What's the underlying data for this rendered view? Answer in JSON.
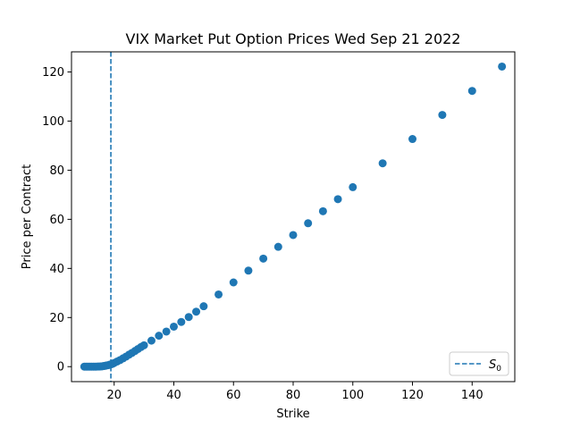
{
  "chart_data": {
    "type": "scatter",
    "title": "VIX Market Put Option Prices Wed Sep 21 2022",
    "xlabel": "Strike",
    "ylabel": "Price per Contract",
    "xlim": [
      5.7,
      154.3
    ],
    "ylim": [
      -6.1,
      128.2
    ],
    "xticks": [
      20,
      40,
      60,
      80,
      100,
      120,
      140
    ],
    "yticks": [
      0,
      20,
      40,
      60,
      80,
      100,
      120
    ],
    "grid": false,
    "legend": {
      "placement": "lower-right",
      "entries": [
        {
          "label": "S",
          "subscript": "0",
          "style": "dashed-line",
          "color": "#1f77b4"
        }
      ]
    },
    "reference_line": {
      "orientation": "vertical",
      "x": 18.9,
      "color": "#1f77b4",
      "style": "dashed"
    },
    "series": [
      {
        "color": "#1f77b4",
        "x": [
          10,
          10.5,
          11,
          11.5,
          12,
          12.5,
          13,
          13.5,
          14,
          14.5,
          15,
          15.5,
          16,
          16.5,
          17,
          17.5,
          18,
          18.5,
          19,
          19.5,
          20,
          21,
          22,
          23,
          24,
          25,
          26,
          27,
          28,
          29,
          30,
          32.5,
          35,
          37.5,
          40,
          42.5,
          45,
          47.5,
          50,
          55,
          60,
          65,
          70,
          75,
          80,
          85,
          90,
          95,
          100,
          110,
          120,
          130,
          140,
          150
        ],
        "y": [
          0.0,
          0.0,
          0.0,
          0.0,
          0.0,
          0.0,
          0.0,
          0.0,
          0.0,
          0.05,
          0.05,
          0.1,
          0.15,
          0.25,
          0.35,
          0.5,
          0.6,
          0.8,
          0.95,
          1.2,
          1.5,
          2.1,
          2.7,
          3.4,
          4.1,
          4.9,
          5.6,
          6.4,
          7.2,
          8.0,
          8.7,
          10.6,
          12.6,
          14.3,
          16.3,
          18.2,
          20.2,
          22.4,
          24.6,
          29.4,
          34.3,
          39.1,
          44.0,
          48.8,
          53.6,
          58.4,
          63.3,
          68.2,
          73.1,
          82.8,
          92.7,
          102.5,
          112.3,
          122.2
        ]
      }
    ]
  }
}
